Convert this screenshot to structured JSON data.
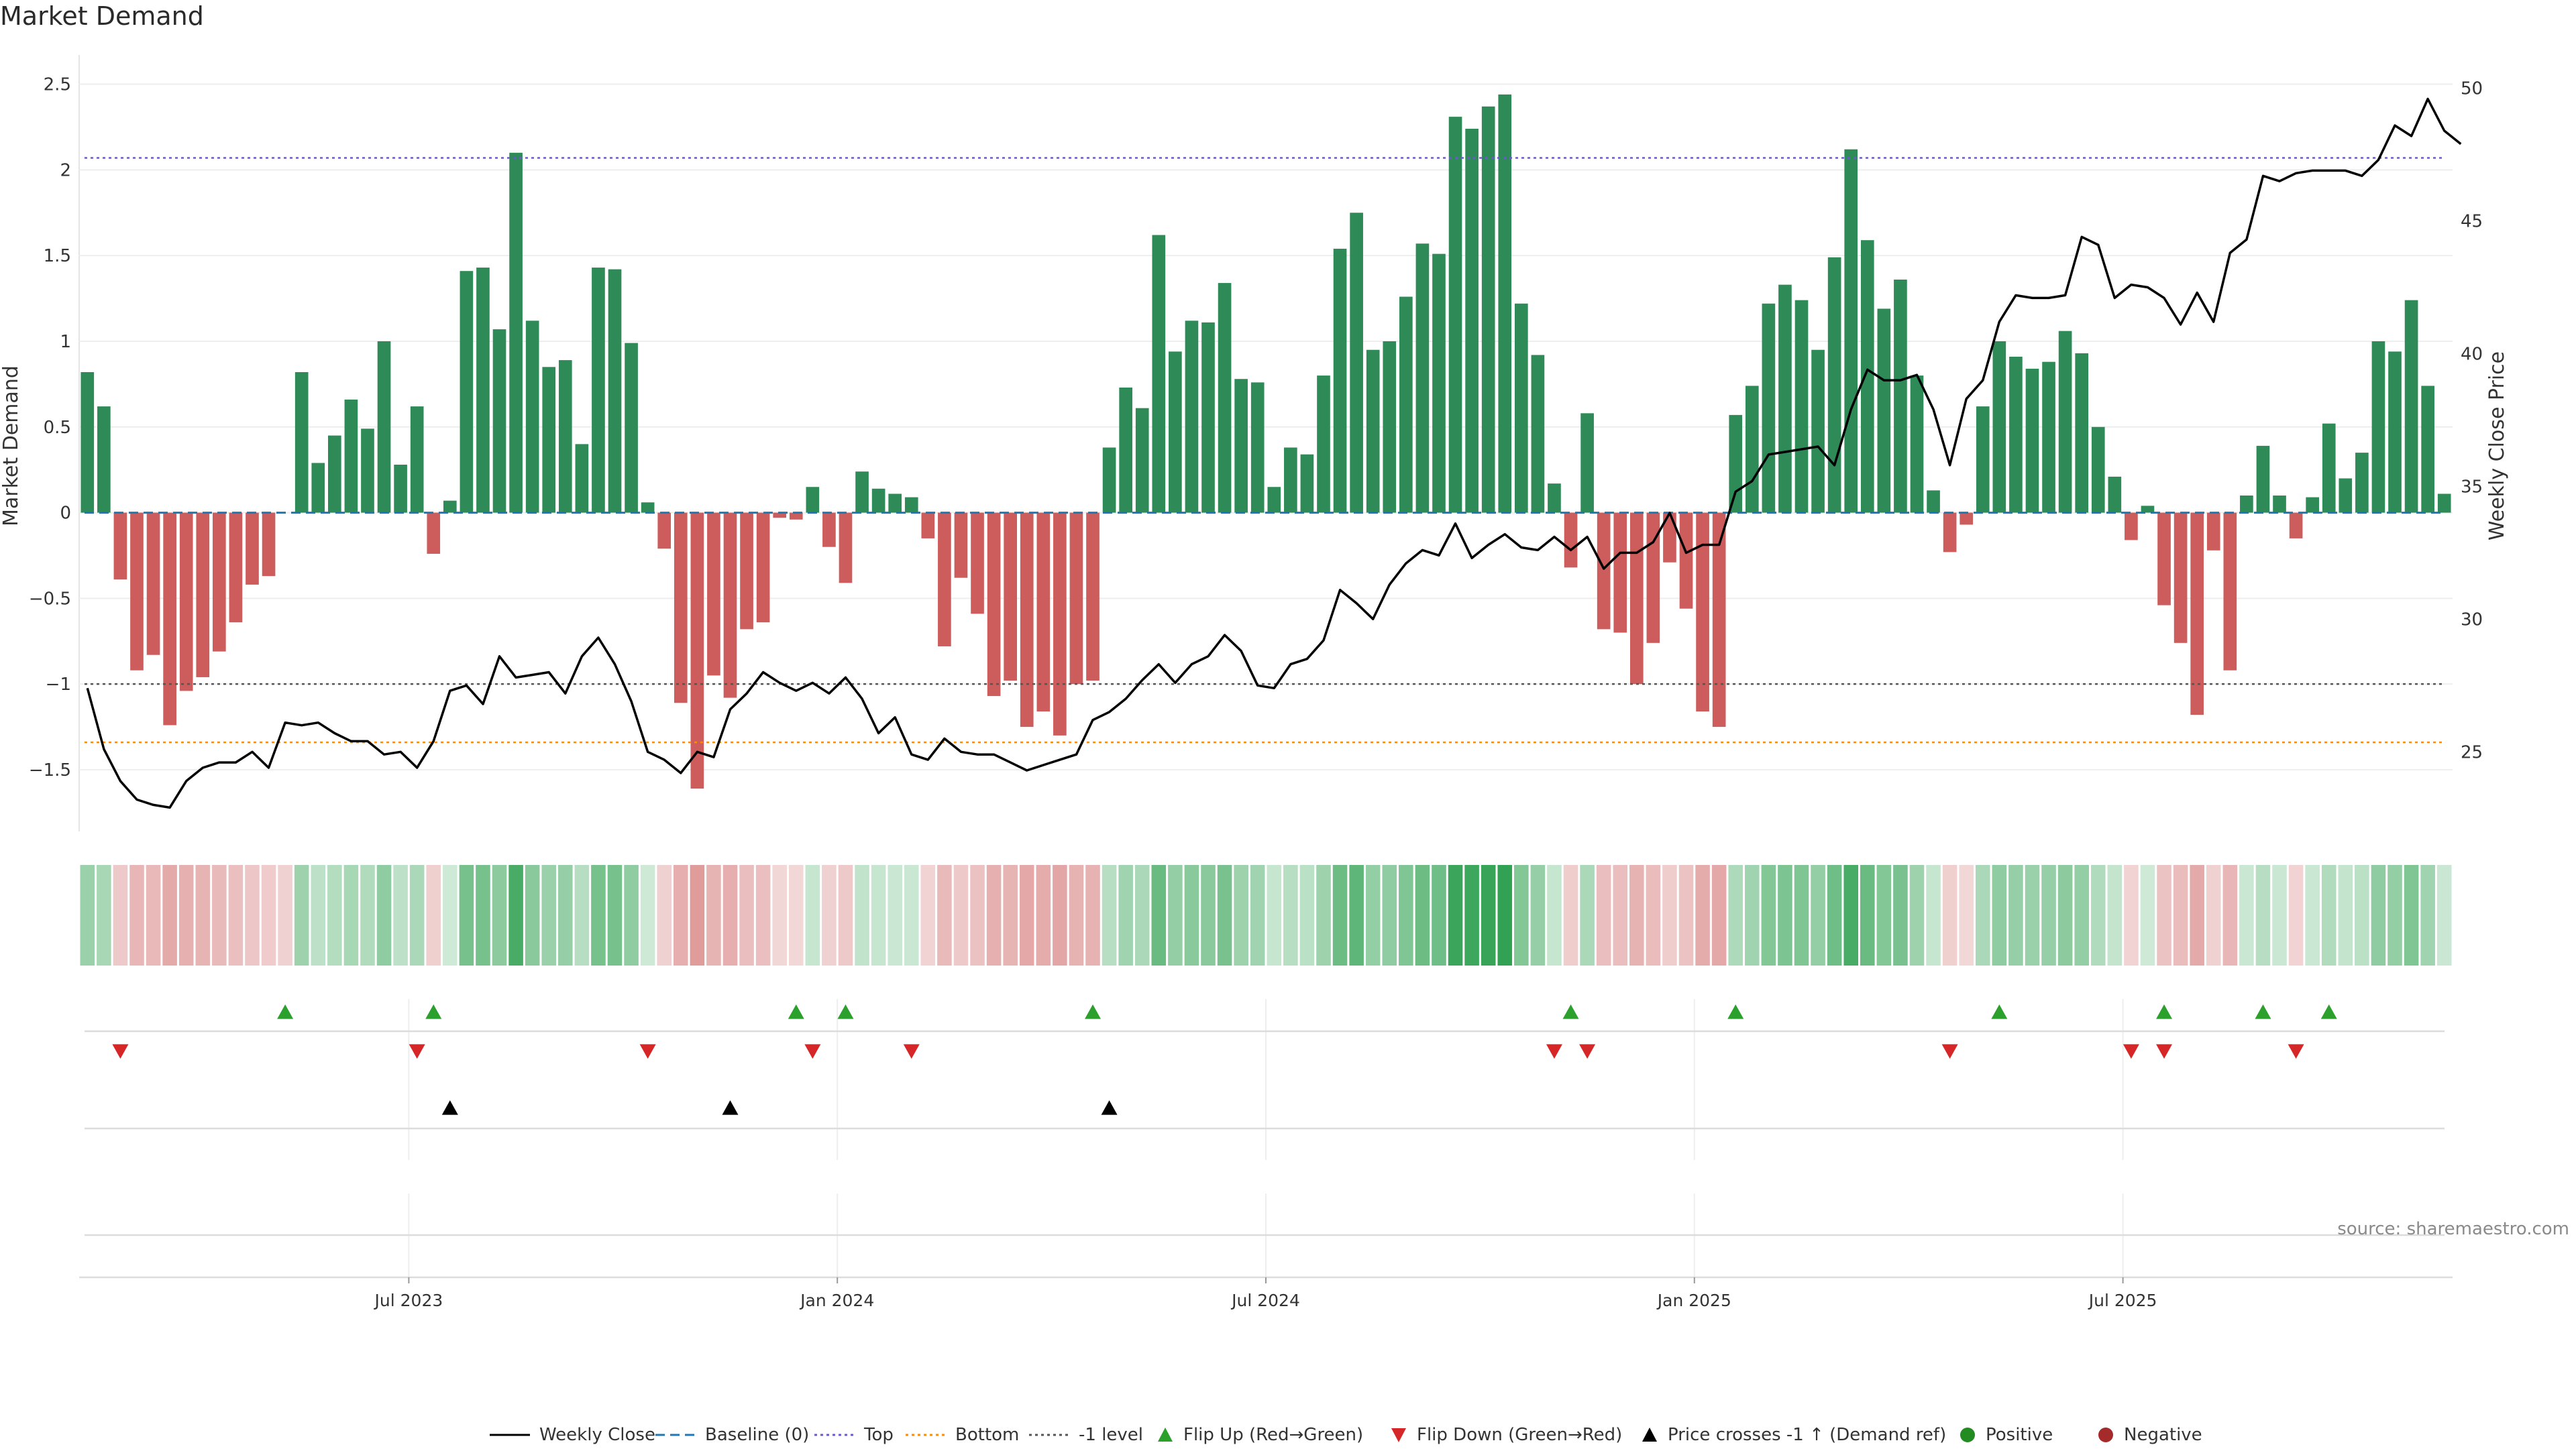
{
  "chart_data": {
    "type": "bar",
    "title": "Market Demand",
    "ylabel_left": "Market Demand",
    "ylabel_right": "Weekly Close Price",
    "ylim_left": [
      -1.86,
      2.6
    ],
    "ylim_right": [
      22.0,
      50.8
    ],
    "yticks_left": [
      2.5,
      2,
      1.5,
      1,
      0.5,
      0,
      -0.5,
      -1,
      -1.5
    ],
    "yticks_left_labels": [
      "2.5",
      "2",
      "1.5",
      "1",
      "0.5",
      "0",
      "−0.5",
      "−1",
      "−1.5"
    ],
    "yticks_right": [
      50,
      45,
      40,
      35,
      30,
      25
    ],
    "yticks_right_labels": [
      "50",
      "45",
      "40",
      "35",
      "30",
      "25"
    ],
    "x_ticks": [
      "Jul 2023",
      "Jan 2024",
      "Jul 2024",
      "Jan 2025",
      "Jul 2025"
    ],
    "x_tick_weeks": [
      20,
      46,
      72,
      98,
      124
    ],
    "reference_lines": {
      "top": 2.07,
      "bottom": -1.34,
      "minus_one": -1.0,
      "baseline": 0
    },
    "demand": [
      0.82,
      0.62,
      -0.39,
      -0.92,
      -0.83,
      -1.24,
      -1.04,
      -0.96,
      -0.81,
      -0.64,
      -0.42,
      -0.37,
      0,
      0.82,
      0.29,
      0.45,
      0.66,
      0.49,
      1.0,
      0.28,
      0.62,
      -0.24,
      0.07,
      1.41,
      1.43,
      1.07,
      2.1,
      1.12,
      0.85,
      0.89,
      0.4,
      1.43,
      1.42,
      0.99,
      0.06,
      -0.21,
      -1.11,
      -1.61,
      -0.95,
      -1.08,
      -0.68,
      -0.64,
      -0.03,
      -0.04,
      0.15,
      -0.2,
      -0.41,
      0.24,
      0.14,
      0.11,
      0.09,
      -0.15,
      -0.78,
      -0.38,
      -0.59,
      -1.07,
      -0.98,
      -1.25,
      -1.16,
      -1.3,
      -1.0,
      -0.98,
      0.38,
      0.73,
      0.61,
      1.62,
      0.94,
      1.12,
      1.11,
      1.34,
      0.78,
      0.76,
      0.15,
      0.38,
      0.34,
      0.8,
      1.54,
      1.75,
      0.95,
      1.0,
      1.26,
      1.57,
      1.51,
      2.31,
      2.24,
      2.37,
      2.44,
      1.22,
      0.92,
      0.17,
      -0.32,
      0.58,
      -0.68,
      -0.7,
      -1.0,
      -0.76,
      -0.29,
      -0.56,
      -1.16,
      -1.25,
      0.57,
      0.74,
      1.22,
      1.33,
      1.24,
      0.95,
      1.49,
      2.12,
      1.59,
      1.19,
      1.36,
      0.8,
      0.13,
      -0.23,
      -0.07,
      0.62,
      1.0,
      0.91,
      0.84,
      0.88,
      1.06,
      0.93,
      0.5,
      0.21,
      -0.16,
      0.04,
      -0.54,
      -0.76,
      -1.18,
      -0.22,
      -0.92,
      0.1,
      0.39,
      0.1,
      -0.15,
      0.09,
      0.52,
      0.2,
      0.35,
      1.0,
      0.94,
      1.24,
      0.74,
      0.11
    ],
    "price": [
      27.4,
      25.1,
      23.9,
      23.2,
      23.0,
      22.9,
      23.9,
      24.4,
      24.6,
      24.6,
      25.0,
      24.4,
      26.1,
      26.0,
      26.1,
      25.7,
      25.4,
      25.4,
      24.9,
      25.0,
      24.4,
      25.4,
      27.3,
      27.5,
      26.8,
      28.6,
      27.8,
      27.9,
      28.0,
      27.2,
      28.6,
      29.3,
      28.3,
      26.9,
      25.0,
      24.7,
      24.2,
      25.0,
      24.8,
      26.6,
      27.2,
      28.0,
      27.6,
      27.3,
      27.6,
      27.2,
      27.8,
      27.0,
      25.7,
      26.3,
      24.9,
      24.7,
      25.5,
      25.0,
      24.9,
      24.9,
      24.6,
      24.3,
      24.5,
      24.7,
      24.9,
      26.2,
      26.5,
      27.0,
      27.7,
      28.3,
      27.6,
      28.3,
      28.6,
      29.4,
      28.8,
      27.5,
      27.4,
      28.3,
      28.5,
      29.2,
      31.1,
      30.6,
      30.0,
      31.3,
      32.1,
      32.6,
      32.4,
      33.6,
      32.3,
      32.8,
      33.2,
      32.7,
      32.6,
      33.1,
      32.6,
      33.1,
      31.9,
      32.5,
      32.5,
      32.9,
      34.0,
      32.5,
      32.8,
      32.8,
      34.8,
      35.2,
      36.2,
      36.3,
      36.4,
      36.5,
      35.8,
      37.9,
      39.4,
      39.0,
      39.0,
      39.2,
      37.9,
      35.8,
      38.3,
      39.0,
      41.2,
      42.2,
      42.1,
      42.1,
      42.2,
      44.4,
      44.1,
      42.1,
      42.6,
      42.5,
      42.1,
      41.1,
      42.3,
      41.2,
      43.8,
      44.3,
      46.7,
      46.5,
      46.8,
      46.9,
      46.9,
      46.9,
      46.7,
      47.3,
      48.6,
      48.2,
      49.6,
      48.4,
      47.9
    ],
    "heat_strip": [
      0.85,
      0.65,
      -0.4,
      -0.9,
      -0.85,
      -1.2,
      -1.05,
      -0.95,
      -0.8,
      -0.65,
      -0.45,
      -0.35,
      -0.2,
      0.8,
      0.3,
      0.45,
      0.65,
      0.5,
      1.0,
      0.3,
      0.6,
      -0.25,
      0.05,
      1.4,
      1.4,
      1.05,
      2.1,
      1.1,
      0.85,
      0.9,
      0.4,
      1.4,
      1.4,
      1.0,
      0.05,
      -0.2,
      -1.1,
      -1.6,
      -0.95,
      -1.1,
      -0.7,
      -0.65,
      -0.05,
      -0.05,
      0.15,
      -0.2,
      -0.4,
      0.25,
      0.15,
      0.1,
      0.1,
      -0.15,
      -0.8,
      -0.4,
      -0.6,
      -1.05,
      -0.95,
      -1.25,
      -1.15,
      -1.3,
      -1.0,
      -1.0,
      0.4,
      0.75,
      0.6,
      1.6,
      0.95,
      1.1,
      1.1,
      1.35,
      0.8,
      0.75,
      0.15,
      0.4,
      0.35,
      0.8,
      1.55,
      1.75,
      0.95,
      1.0,
      1.25,
      1.55,
      1.5,
      2.3,
      2.25,
      2.35,
      2.45,
      1.2,
      0.9,
      0.15,
      -0.3,
      0.6,
      -0.7,
      -0.7,
      -1.0,
      -0.75,
      -0.3,
      -0.55,
      -1.15,
      -1.25,
      0.55,
      0.75,
      1.2,
      1.3,
      1.25,
      0.95,
      1.5,
      2.1,
      1.6,
      1.2,
      1.35,
      0.8,
      0.15,
      -0.25,
      -0.05,
      0.6,
      1.0,
      0.9,
      0.85,
      0.9,
      1.05,
      0.95,
      0.5,
      0.2,
      -0.15,
      0.05,
      -0.55,
      -0.75,
      -1.2,
      -0.2,
      -0.9,
      0.1,
      0.4,
      0.1,
      -0.15,
      0.1,
      0.5,
      0.2,
      0.35,
      1.0,
      0.95,
      1.25,
      0.75,
      0.1
    ],
    "flip_up_weeks": [
      12,
      21,
      43,
      46,
      61,
      90,
      100,
      116,
      126,
      132,
      136
    ],
    "flip_down_weeks": [
      2,
      20,
      34,
      44,
      50,
      89,
      91,
      113,
      124,
      126,
      134
    ],
    "price_cross_weeks": [
      22,
      39,
      62
    ],
    "colors": {
      "positive": "#2e8b57",
      "negative": "#cd5c5c",
      "price_line": "#000000",
      "baseline": "#1f77b4",
      "top": "#6a5acd",
      "bottom": "#ff8c00",
      "minus_one": "#555555",
      "flip_up": "#2ca02c",
      "flip_down": "#d62728",
      "cross": "#000000"
    },
    "legend": [
      {
        "kind": "line",
        "label": "Weekly Close",
        "color": "#000000",
        "dash": ""
      },
      {
        "kind": "line",
        "label": "Baseline (0)",
        "color": "#1f77b4",
        "dash": "14,8"
      },
      {
        "kind": "line",
        "label": "Top",
        "color": "#6a5acd",
        "dash": "4,5"
      },
      {
        "kind": "line",
        "label": "Bottom",
        "color": "#ff8c00",
        "dash": "4,5"
      },
      {
        "kind": "line",
        "label": "-1 level",
        "color": "#555555",
        "dash": "4,5"
      },
      {
        "kind": "tri-up",
        "label": "Flip Up (Red→Green)",
        "color": "#2ca02c"
      },
      {
        "kind": "tri-down",
        "label": "Flip Down (Green→Red)",
        "color": "#d62728"
      },
      {
        "kind": "tri-up",
        "label": "Price crosses -1 ↑ (Demand ref)",
        "color": "#000000"
      },
      {
        "kind": "dot",
        "label": "Positive",
        "color": "#228b22"
      },
      {
        "kind": "dot",
        "label": "Negative",
        "color": "#a52a2a"
      }
    ]
  },
  "source": "source: sharemaestro.com"
}
